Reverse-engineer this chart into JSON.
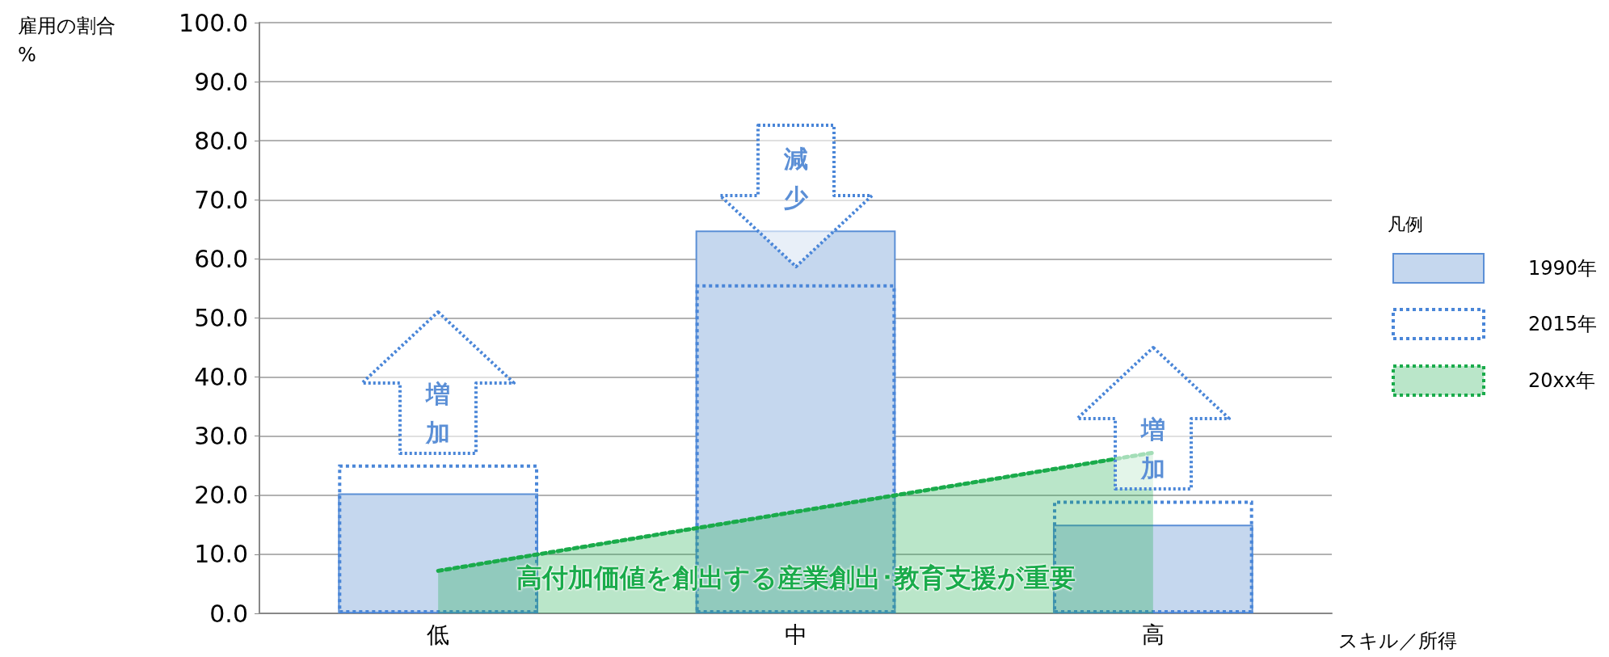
{
  "chart_data": {
    "type": "bar",
    "ylabel": "雇用の割合\n%",
    "xlabel": "スキル／所得",
    "legend_title": "凡例",
    "categories": [
      "低",
      "中",
      "高"
    ],
    "series": [
      {
        "name": "1990年",
        "type": "bar",
        "color": "#c5d7ee",
        "values": [
          20.3,
          64.8,
          15.0
        ]
      },
      {
        "name": "2015年",
        "type": "bar",
        "color": "#4a86d8",
        "line_style": "dotted",
        "values": [
          25.2,
          55.7,
          19.1
        ]
      },
      {
        "name": "20xx年",
        "type": "area",
        "color": "#1aab4b",
        "line_style": "dotted",
        "values": [
          7.2,
          17.2,
          27.2
        ]
      }
    ],
    "ylim": [
      0,
      100
    ],
    "yticks": [
      {
        "value": 0,
        "label": "0.0"
      },
      {
        "value": 10,
        "label": "10.0"
      },
      {
        "value": 20,
        "label": "20.0"
      },
      {
        "value": 30,
        "label": "30.0"
      },
      {
        "value": 40,
        "label": "40.0"
      },
      {
        "value": 50,
        "label": "50.0"
      },
      {
        "value": 60,
        "label": "60.0"
      },
      {
        "value": 70,
        "label": "70.0"
      },
      {
        "value": 80,
        "label": "80.0"
      },
      {
        "value": 90,
        "label": "90.0"
      },
      {
        "value": 100,
        "label": "100.0"
      }
    ],
    "grid": "y",
    "legend": "right",
    "annotations": [
      "増加",
      "減少",
      "増加",
      "高付加価値を創出する産業創出･教育支援が重要"
    ]
  }
}
